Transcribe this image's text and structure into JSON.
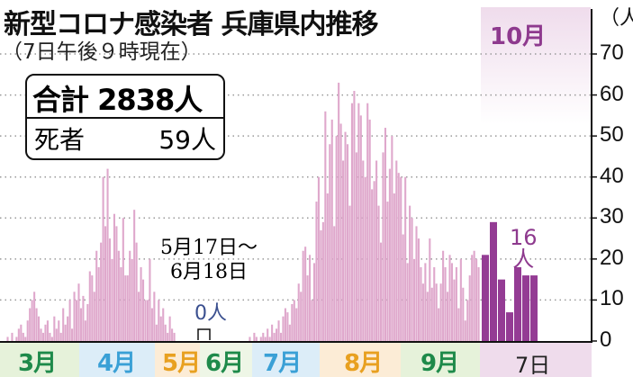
{
  "title": "新型コロナ感染者 兵庫県内推移",
  "subtitle": "（7日午後９時現在）",
  "summary": {
    "total_label": "合計",
    "total_value": "2838人",
    "deaths_label": "死者",
    "deaths_value": "59人"
  },
  "colors": {
    "bar": "#dfa8cc",
    "bar_recent": "#943c94",
    "grid": "#999999",
    "oct_band": "#efdcec"
  },
  "chart_data": {
    "type": "bar",
    "title": "新型コロナ感染者 兵庫県内推移",
    "ylabel": "（人）",
    "ylim": [
      0,
      70
    ],
    "yticks": [
      "0",
      "10",
      "20",
      "30",
      "40",
      "50",
      "60",
      "70"
    ],
    "grid": true,
    "months": [
      {
        "label": "3月",
        "color": "#1e8a4a",
        "bg": "#e6f2da"
      },
      {
        "label": "4月",
        "color": "#3aa0d6",
        "bg": "#dcedf8"
      },
      {
        "label": "5月",
        "color": "#e8a020",
        "bg": "#fcecd6"
      },
      {
        "label": "6月",
        "color": "#1e8a4a",
        "bg": "#eef6e6"
      },
      {
        "label": "7月",
        "color": "#3aa0d6",
        "bg": "#dcedf8"
      },
      {
        "label": "8月",
        "color": "#e8a020",
        "bg": "#fcecd6"
      },
      {
        "label": "9月",
        "color": "#1e8a4a",
        "bg": "#e6f2da"
      }
    ],
    "oct_label": "10月",
    "oct_day_label": "7日",
    "daily_mar_sep": [
      0,
      1,
      0,
      2,
      0,
      1,
      3,
      4,
      2,
      1,
      5,
      8,
      10,
      12,
      8,
      6,
      3,
      2,
      4,
      5,
      2,
      1,
      6,
      3,
      5,
      2,
      8,
      4,
      6,
      10,
      3,
      12,
      10,
      14,
      8,
      11,
      5,
      9,
      17,
      16,
      12,
      22,
      18,
      24,
      40,
      28,
      42,
      25,
      20,
      31,
      28,
      22,
      18,
      30,
      16,
      16,
      22,
      20,
      32,
      24,
      12,
      18,
      15,
      10,
      10,
      20,
      8,
      12,
      4,
      10,
      6,
      8,
      4,
      2,
      6,
      3,
      2,
      0,
      0,
      0,
      0,
      0,
      0,
      0,
      0,
      0,
      0,
      0,
      0,
      0,
      0,
      0,
      0,
      0,
      0,
      0,
      0,
      0,
      0,
      0,
      0,
      0,
      0,
      0,
      0,
      0,
      0,
      0,
      0,
      0,
      1,
      0,
      2,
      1,
      0,
      1,
      2,
      1,
      3,
      1,
      4,
      2,
      3,
      5,
      2,
      6,
      8,
      7,
      4,
      9,
      10,
      8,
      14,
      12,
      22,
      23,
      16,
      21,
      10,
      19,
      34,
      40,
      27,
      29,
      56,
      36,
      48,
      54,
      28,
      50,
      63,
      53,
      44,
      51,
      48,
      33,
      58,
      61,
      46,
      58,
      55,
      44,
      40,
      58,
      54,
      37,
      39,
      44,
      33,
      24,
      46,
      52,
      34,
      42,
      50,
      36,
      44,
      41,
      40,
      26,
      40,
      19,
      33,
      30,
      20,
      28,
      25,
      18,
      14,
      19,
      12,
      25,
      13,
      18,
      14,
      8,
      14,
      22,
      18,
      12,
      21,
      19,
      15,
      18,
      8,
      20,
      13,
      5,
      10,
      16,
      21,
      22,
      20,
      18
    ],
    "daily_oct": [
      21,
      29,
      15,
      7,
      18,
      16,
      16
    ],
    "annotations": {
      "zero_period": "5月17日～\n6月18日",
      "zero_value": "0人",
      "latest_value": "16",
      "latest_unit": "人"
    }
  }
}
